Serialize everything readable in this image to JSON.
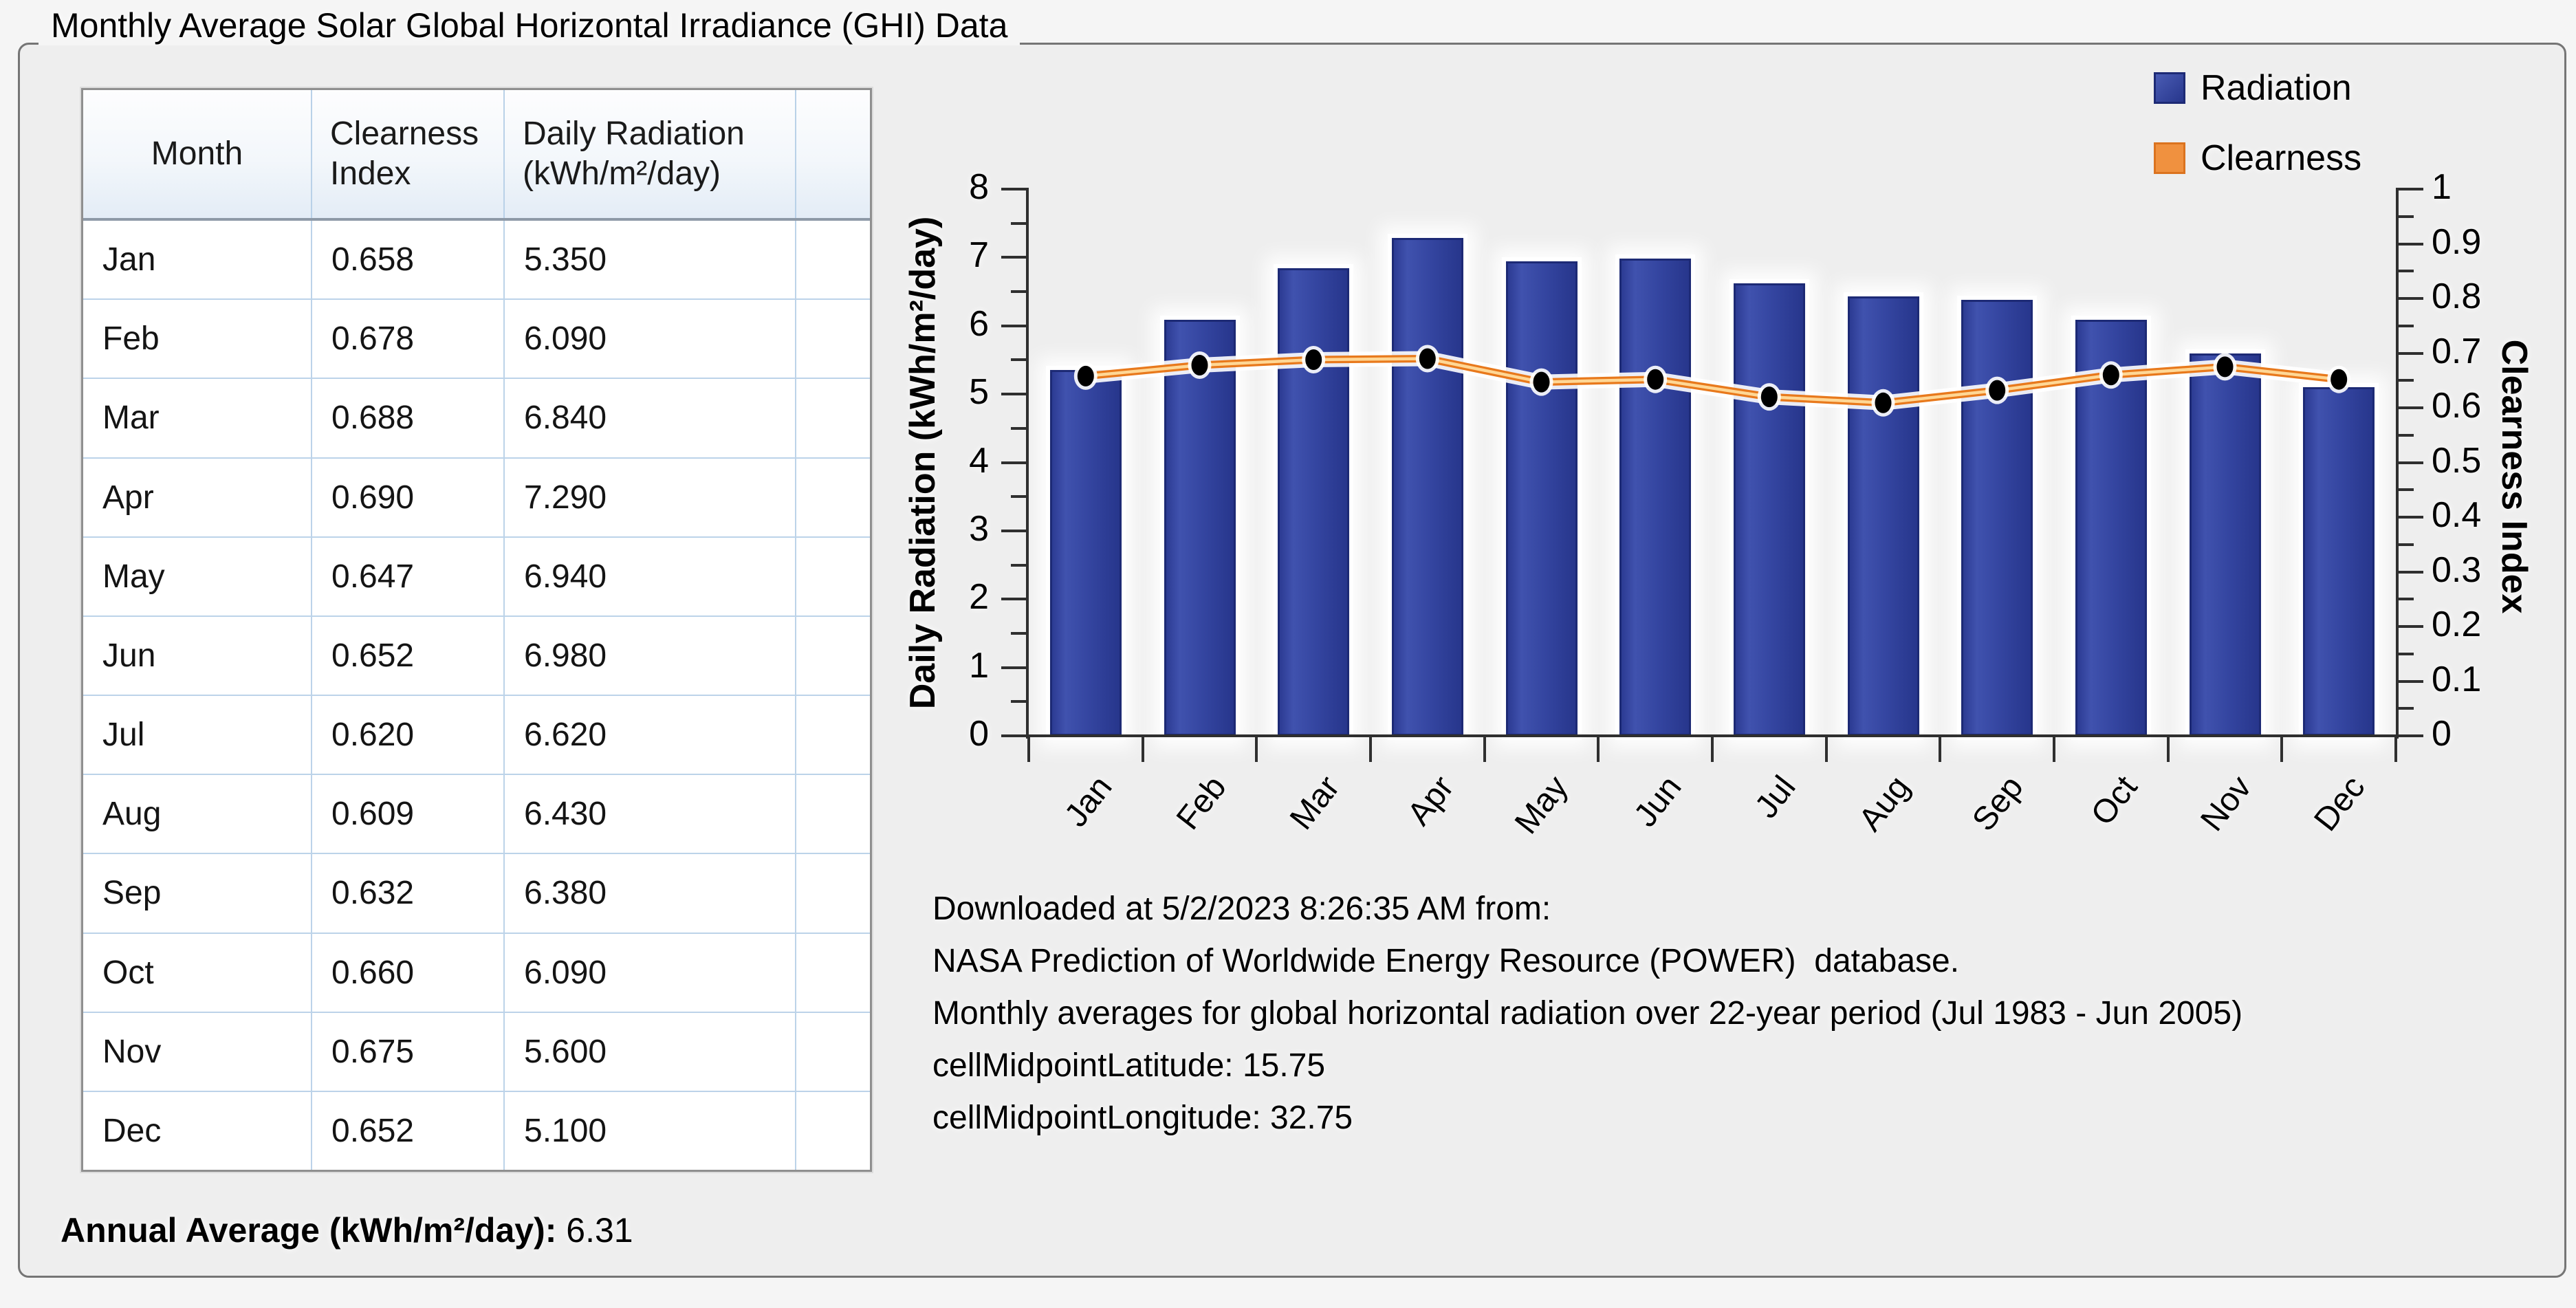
{
  "panel": {
    "title": "Monthly Average Solar Global Horizontal Irradiance (GHI) Data"
  },
  "table": {
    "header": {
      "col1": [
        "Month"
      ],
      "col2": [
        "Clearness",
        "Index"
      ],
      "col3": [
        "Daily Radiation",
        "(kWh/m²/day)"
      ],
      "col4": []
    },
    "rows": [
      {
        "month": "Jan",
        "clearness": "0.658",
        "radiation": "5.350"
      },
      {
        "month": "Feb",
        "clearness": "0.678",
        "radiation": "6.090"
      },
      {
        "month": "Mar",
        "clearness": "0.688",
        "radiation": "6.840"
      },
      {
        "month": "Apr",
        "clearness": "0.690",
        "radiation": "7.290"
      },
      {
        "month": "May",
        "clearness": "0.647",
        "radiation": "6.940"
      },
      {
        "month": "Jun",
        "clearness": "0.652",
        "radiation": "6.980"
      },
      {
        "month": "Jul",
        "clearness": "0.620",
        "radiation": "6.620"
      },
      {
        "month": "Aug",
        "clearness": "0.609",
        "radiation": "6.430"
      },
      {
        "month": "Sep",
        "clearness": "0.632",
        "radiation": "6.380"
      },
      {
        "month": "Oct",
        "clearness": "0.660",
        "radiation": "6.090"
      },
      {
        "month": "Nov",
        "clearness": "0.675",
        "radiation": "5.600"
      },
      {
        "month": "Dec",
        "clearness": "0.652",
        "radiation": "5.100"
      }
    ]
  },
  "annual": {
    "label": "Annual Average (kWh/m²/day):",
    "value": "6.31"
  },
  "chart_data": {
    "type": "bar",
    "title": "",
    "categories": [
      "Jan",
      "Feb",
      "Mar",
      "Apr",
      "May",
      "Jun",
      "Jul",
      "Aug",
      "Sep",
      "Oct",
      "Nov",
      "Dec"
    ],
    "series": [
      {
        "name": "Radiation",
        "type": "bar",
        "axis": "left",
        "color": "#3849a6",
        "values": [
          5.35,
          6.09,
          6.84,
          7.29,
          6.94,
          6.98,
          6.62,
          6.43,
          6.38,
          6.09,
          5.6,
          5.1
        ]
      },
      {
        "name": "Clearness",
        "type": "line",
        "axis": "right",
        "line_color": "#e8791c",
        "line_core_color": "#ffd795",
        "marker_color": "#000000",
        "values": [
          0.658,
          0.678,
          0.688,
          0.69,
          0.647,
          0.652,
          0.62,
          0.609,
          0.632,
          0.66,
          0.675,
          0.652
        ]
      }
    ],
    "left_axis": {
      "label": "Daily Radiation (kWh/m²/day)",
      "range": [
        0,
        8
      ],
      "tick": 1,
      "minor_tick": 0.5
    },
    "right_axis": {
      "label": "Clearness Index",
      "range": [
        0,
        1
      ],
      "tick": 0.1,
      "minor_tick": 0.05
    },
    "legend": {
      "position": "top-right",
      "entries": [
        {
          "label": "Radiation",
          "fill": "#3849a6",
          "border": "#1d2a75",
          "gradient": true
        },
        {
          "label": "Clearness",
          "fill": "#f0913f",
          "border": "#db731f",
          "gradient": false
        }
      ]
    },
    "grid": false
  },
  "footer": {
    "lines": [
      "Downloaded at 5/2/2023 8:26:35 AM from:",
      "NASA Prediction of Worldwide Energy Resource (POWER)  database.",
      "Monthly averages for global horizontal radiation over 22-year period (Jul 1983 - Jun 2005)",
      "cellMidpointLatitude: 15.75",
      "cellMidpointLongitude: 32.75"
    ]
  }
}
